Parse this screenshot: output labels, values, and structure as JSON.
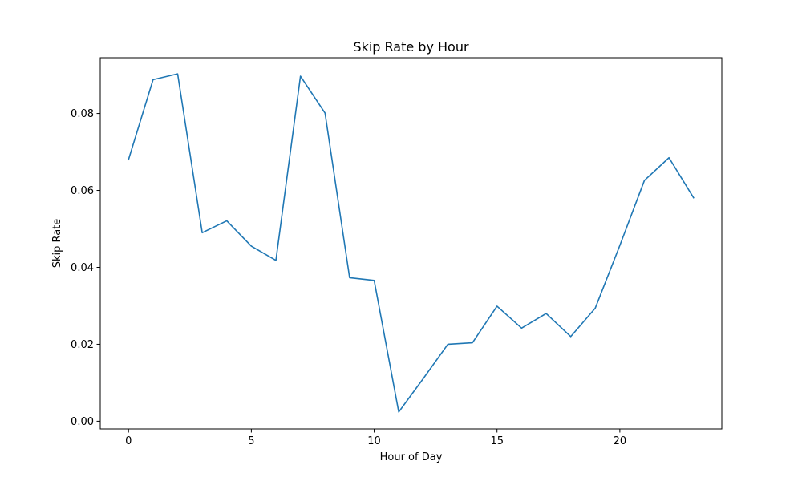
{
  "chart_data": {
    "type": "line",
    "title": "Skip Rate by Hour",
    "xlabel": "Hour of Day",
    "ylabel": "Skip Rate",
    "x": [
      0,
      1,
      2,
      3,
      4,
      5,
      6,
      7,
      8,
      9,
      10,
      11,
      12,
      13,
      14,
      15,
      16,
      17,
      18,
      19,
      20,
      21,
      22,
      23
    ],
    "series": [
      {
        "values": [
          0.068,
          0.0888,
          0.0903,
          0.049,
          0.0521,
          0.0455,
          0.0418,
          0.0897,
          0.0801,
          0.0373,
          0.0366,
          0.0024,
          0.0111,
          0.02,
          0.0204,
          0.0299,
          0.0242,
          0.028,
          0.022,
          0.0294,
          0.0457,
          0.0626,
          0.0685,
          0.0581
        ],
        "color": "#1f77b4"
      }
    ],
    "xlim": [
      -1.15,
      24.15
    ],
    "ylim": [
      -0.002,
      0.0945
    ],
    "xticks": [
      0,
      5,
      10,
      15,
      20
    ],
    "xtick_labels": [
      "0",
      "5",
      "10",
      "15",
      "20"
    ],
    "yticks": [
      0.0,
      0.02,
      0.04,
      0.06,
      0.08
    ],
    "ytick_labels": [
      "0.00",
      "0.02",
      "0.04",
      "0.06",
      "0.08"
    ],
    "grid": false,
    "legend": "none"
  }
}
